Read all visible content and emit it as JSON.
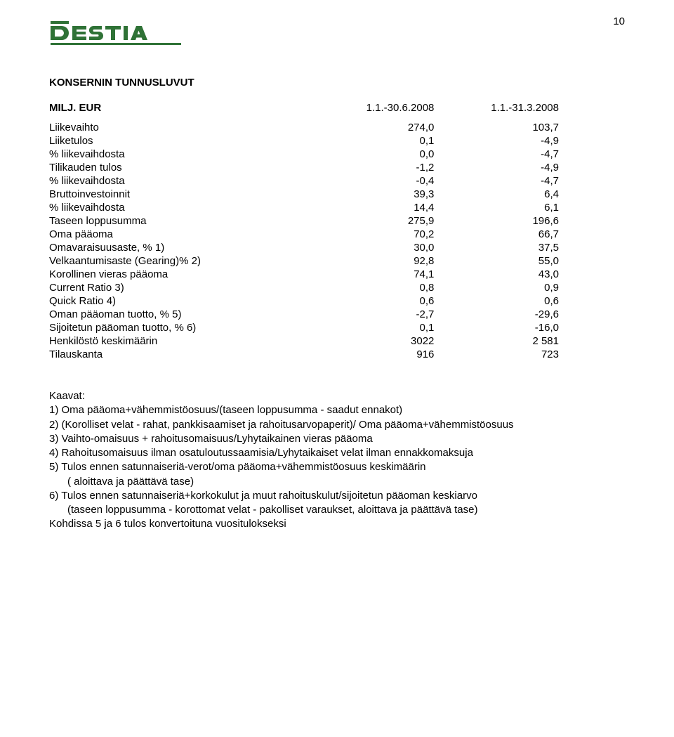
{
  "page_number": "10",
  "logo_color": "#2f7236",
  "heading": "KONSERNIN TUNNUSLUVUT",
  "table": {
    "unit_label": "MILJ. EUR",
    "col_headers": [
      "1.1.-30.6.2008",
      "1.1.-31.3.2008"
    ],
    "rows": [
      {
        "label": "Liikevaihto",
        "c1": "274,0",
        "c2": "103,7"
      },
      {
        "label": "Liiketulos",
        "c1": "0,1",
        "c2": "-4,9"
      },
      {
        "label": "% liikevaihdosta",
        "c1": "0,0",
        "c2": "-4,7"
      },
      {
        "label": "Tilikauden tulos",
        "c1": "-1,2",
        "c2": "-4,9"
      },
      {
        "label": "% liikevaihdosta",
        "c1": "-0,4",
        "c2": "-4,7"
      },
      {
        "label": "Bruttoinvestoinnit",
        "c1": "39,3",
        "c2": "6,4"
      },
      {
        "label": "% liikevaihdosta",
        "c1": "14,4",
        "c2": "6,1"
      },
      {
        "label": "Taseen loppusumma",
        "c1": "275,9",
        "c2": "196,6"
      },
      {
        "label": "Oma pääoma",
        "c1": "70,2",
        "c2": "66,7"
      },
      {
        "label": "Omavaraisuusaste, % 1)",
        "c1": "30,0",
        "c2": "37,5"
      },
      {
        "label": "Velkaantumisaste (Gearing)% 2)",
        "c1": "92,8",
        "c2": "55,0"
      },
      {
        "label": "Korollinen vieras pääoma",
        "c1": "74,1",
        "c2": "43,0"
      },
      {
        "label": "Current Ratio 3)",
        "c1": "0,8",
        "c2": "0,9"
      },
      {
        "label": "Quick Ratio 4)",
        "c1": "0,6",
        "c2": "0,6"
      },
      {
        "label": "Oman pääoman tuotto, % 5)",
        "c1": "-2,7",
        "c2": "-29,6"
      },
      {
        "label": "Sijoitetun pääoman tuotto, % 6)",
        "c1": "0,1",
        "c2": "-16,0"
      },
      {
        "label": "Henkilöstö keskimäärin",
        "c1": "3022",
        "c2": "2 581"
      },
      {
        "label": "Tilauskanta",
        "c1": "916",
        "c2": "723"
      }
    ]
  },
  "formulas": {
    "title": "Kaavat:",
    "lines": [
      "1) Oma pääoma+vähemmistöosuus/(taseen loppusumma - saadut ennakot)",
      "2) (Korolliset velat - rahat, pankkisaamiset ja rahoitusarvopaperit)/ Oma pääoma+vähemmistöosuus",
      "3) Vaihto-omaisuus + rahoitusomaisuus/Lyhytaikainen vieras pääoma",
      "4) Rahoitusomaisuus ilman osatuloutussaamisia/Lyhytaikaiset velat ilman ennakkomaksuja",
      "5) Tulos ennen satunnaiseriä-verot/oma pääoma+vähemmistöosuus keskimäärin"
    ],
    "indent5": "( aloittava ja päättävä tase)",
    "line6": "6) Tulos ennen satunnaiseriä+korkokulut ja muut rahoituskulut/sijoitetun pääoman keskiarvo",
    "indent6": "(taseen loppusumma - korottomat velat - pakolliset varaukset, aloittava ja päättävä tase)",
    "footnote": "Kohdissa 5 ja 6 tulos konvertoituna vuositulokseksi"
  }
}
